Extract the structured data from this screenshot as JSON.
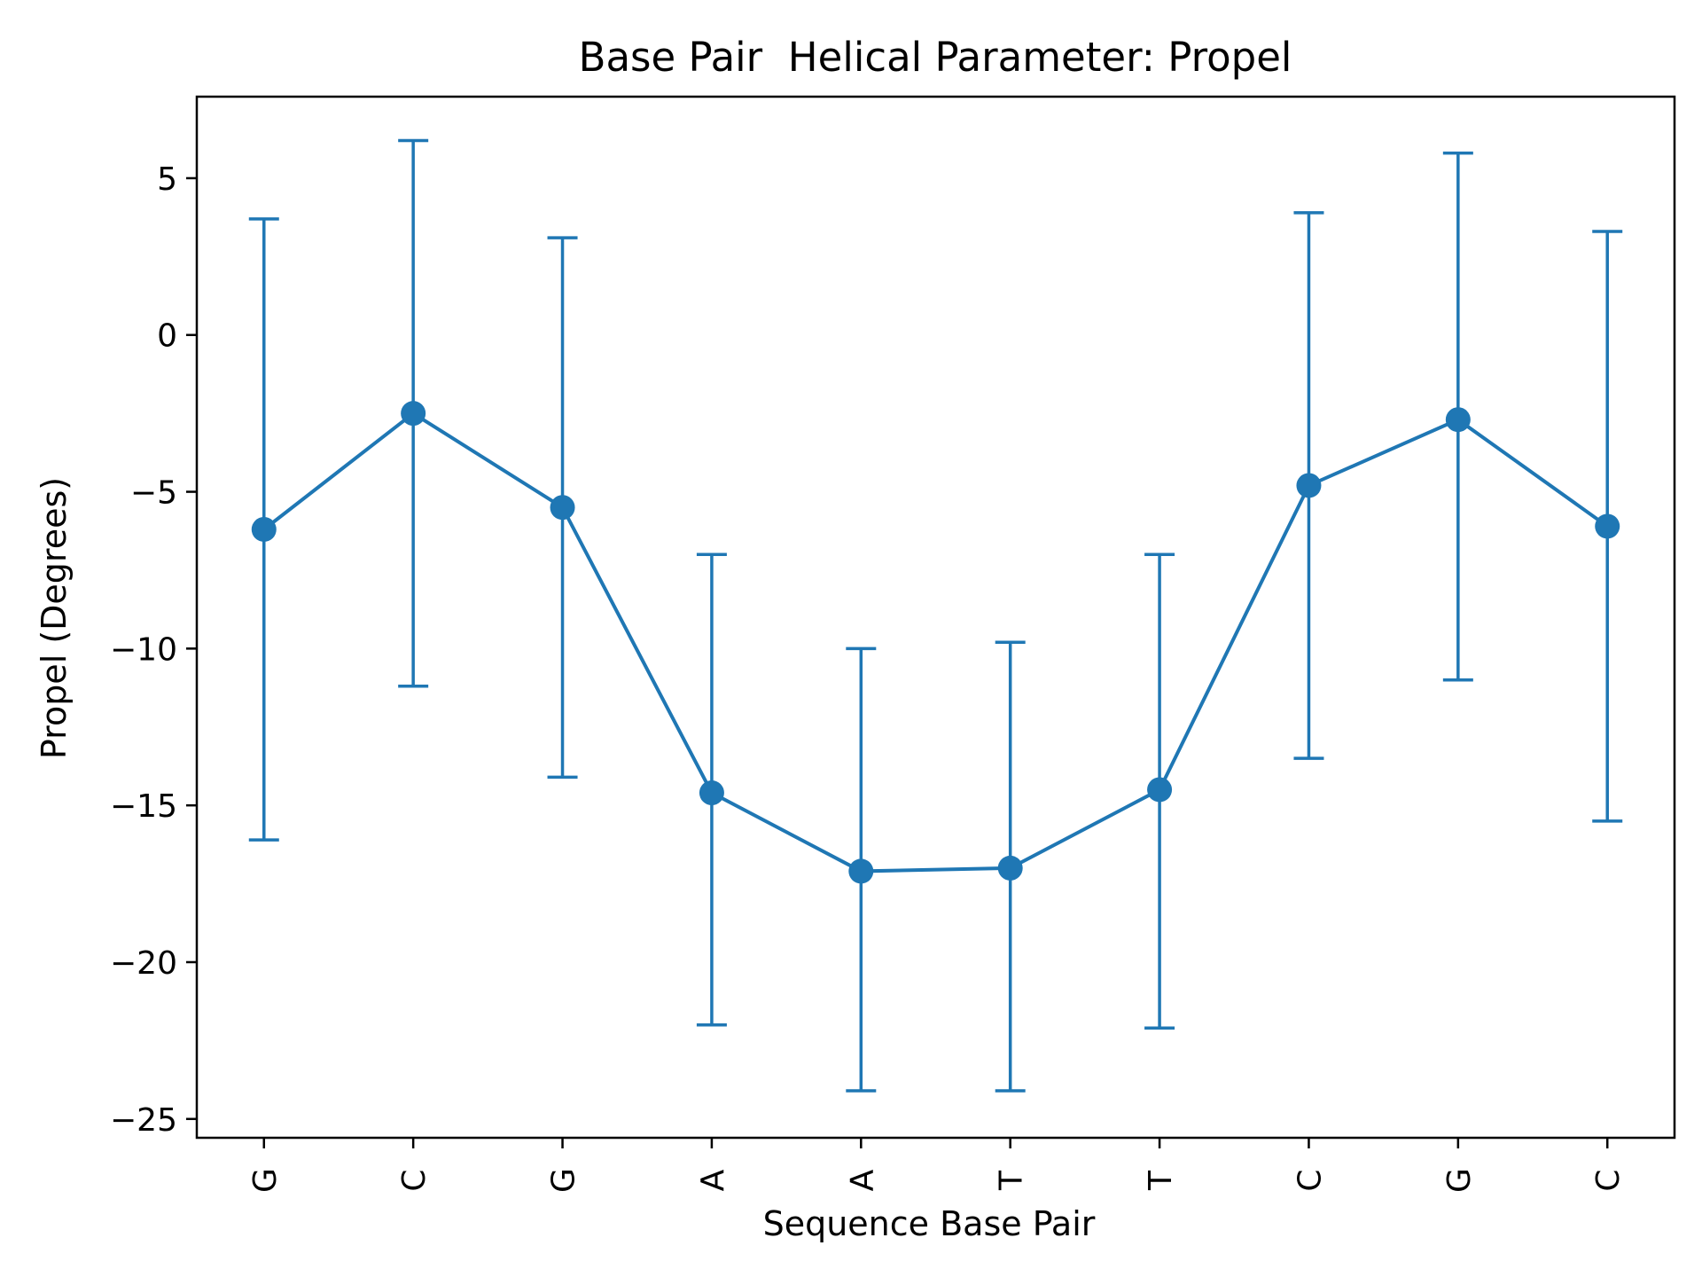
{
  "chart_data": {
    "type": "line",
    "title": "Base Pair  Helical Parameter: Propel",
    "xlabel": "Sequence Base Pair",
    "ylabel": "Propel (Degrees)",
    "categories": [
      "G",
      "C",
      "G",
      "A",
      "A",
      "T",
      "T",
      "C",
      "G",
      "C"
    ],
    "ylim": [
      -25.6,
      7.6
    ],
    "yticks": [
      5,
      0,
      -5,
      -10,
      -15,
      -20,
      -25
    ],
    "ytick_labels": [
      "5",
      "0",
      "−5",
      "−10",
      "−15",
      "−20",
      "−25"
    ],
    "grid": false,
    "series": [
      {
        "values": [
          -6.2,
          -2.5,
          -5.5,
          -14.6,
          -17.1,
          -17.0,
          -14.5,
          -4.8,
          -2.7,
          -6.1
        ],
        "err_low": [
          -16.1,
          -11.2,
          -14.1,
          -22.0,
          -24.1,
          -24.1,
          -22.1,
          -13.5,
          -11.0,
          -15.5
        ],
        "err_high": [
          3.7,
          6.2,
          3.1,
          -7.0,
          -10.0,
          -9.8,
          -7.0,
          3.9,
          5.8,
          3.3
        ],
        "color": "#1f77b4"
      }
    ]
  }
}
